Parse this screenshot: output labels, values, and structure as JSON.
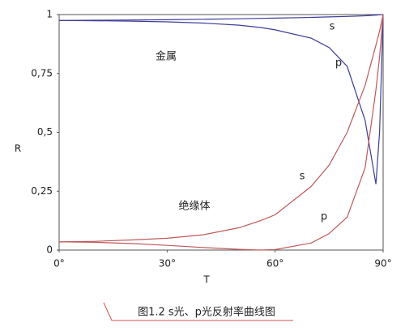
{
  "chart_data": {
    "type": "line",
    "x_label": "T",
    "y_label": "R",
    "caption": "图1.2  s光、p光反射率曲线图",
    "x": [
      0,
      10,
      20,
      30,
      40,
      50,
      56,
      60,
      70,
      75,
      80,
      85,
      88,
      89,
      90
    ],
    "series": [
      {
        "name": "金属 s",
        "color": "#3c3c9c",
        "values": [
          0.975,
          0.976,
          0.977,
          0.978,
          0.98,
          0.982,
          0.984,
          0.985,
          0.988,
          0.99,
          0.992,
          0.995,
          0.998,
          0.999,
          1
        ]
      },
      {
        "name": "金属 p",
        "color": "#3c3c9c",
        "values": [
          0.975,
          0.974,
          0.972,
          0.969,
          0.964,
          0.955,
          0.945,
          0.935,
          0.9,
          0.86,
          0.78,
          0.55,
          0.28,
          0.5,
          1
        ]
      },
      {
        "name": "绝缘体 s",
        "color": "#c0585a",
        "values": [
          0.035,
          0.037,
          0.043,
          0.05,
          0.065,
          0.095,
          0.125,
          0.15,
          0.27,
          0.36,
          0.5,
          0.7,
          0.87,
          0.93,
          1
        ]
      },
      {
        "name": "绝缘体 p",
        "color": "#c0585a",
        "values": [
          0.035,
          0.033,
          0.028,
          0.02,
          0.011,
          0.003,
          0,
          0.002,
          0.03,
          0.07,
          0.14,
          0.35,
          0.68,
          0.82,
          1
        ]
      }
    ],
    "annotations": [
      "金属",
      "绝缘体",
      "s",
      "p",
      "s",
      "p"
    ],
    "xlim": [
      0,
      90
    ],
    "xticks": [
      {
        "value": 0,
        "label": "0°"
      },
      {
        "value": 30,
        "label": "30°"
      },
      {
        "value": 60,
        "label": "60°"
      },
      {
        "value": 90,
        "label": "90°"
      }
    ],
    "ylim": [
      0,
      1
    ],
    "yticks": [
      0,
      {
        "value": 0.25,
        "label": "0,25"
      },
      {
        "value": 0.5,
        "label": "0,5"
      },
      {
        "value": 0.75,
        "label": "0,75"
      },
      1
    ]
  }
}
